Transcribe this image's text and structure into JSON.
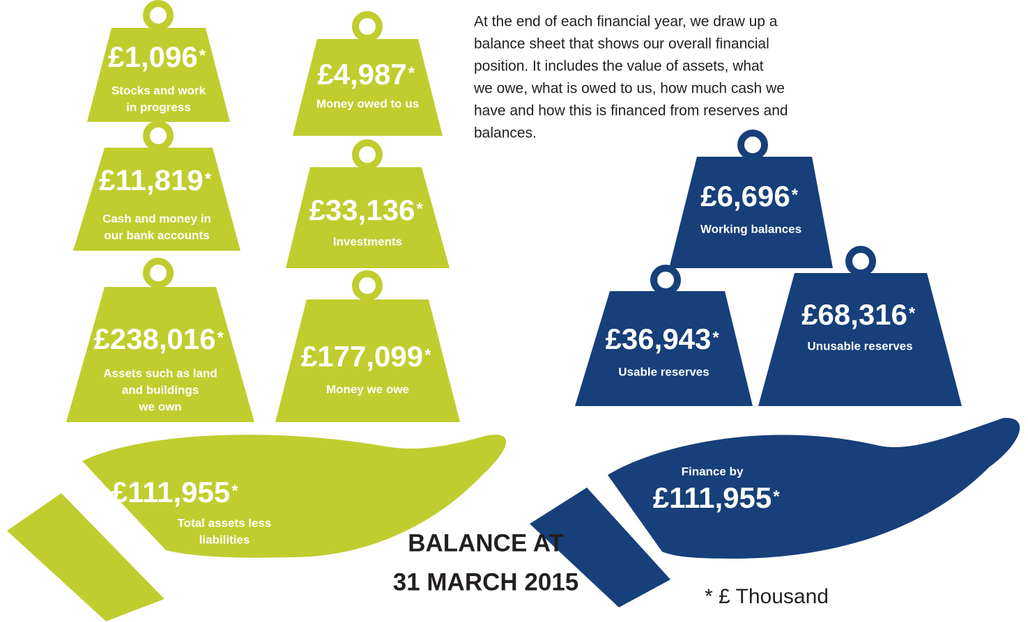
{
  "intro": [
    "At the end of each financial year, we draw up a",
    "balance sheet that shows our overall financial",
    "position. It includes the value of assets, what",
    "we owe, what is owed to us, how much cash we",
    "have and how this is financed from reserves and",
    "balances."
  ],
  "weights": [
    {
      "amount": "£1,096",
      "label": [
        "Stocks and work",
        "in progress"
      ]
    },
    {
      "amount": "£11,819",
      "label": [
        "Cash and money in",
        "our bank accounts"
      ]
    },
    {
      "amount": "£238,016",
      "label": [
        "Assets such as land",
        "and buildings",
        "we own"
      ]
    },
    {
      "amount": "£4,987",
      "label": [
        "Money owed to us"
      ]
    },
    {
      "amount": "£33,136",
      "label": [
        "Investments"
      ]
    },
    {
      "amount": "£177,099",
      "label": [
        "Money we owe"
      ]
    },
    {
      "amount": "£6,696",
      "label": [
        "Working balances"
      ]
    },
    {
      "amount": "£36,943",
      "label": [
        "Usable reserves"
      ]
    },
    {
      "amount": "£68,316",
      "label": [
        "Unusable reserves"
      ]
    }
  ],
  "hands": [
    {
      "amount": "£111,955",
      "label": [
        "Total assets less",
        "liabilities"
      ]
    },
    {
      "heading": "Finance by",
      "amount": "£111,955"
    }
  ],
  "asterisk": "*",
  "title": [
    "BALANCE AT",
    "31 MARCH 2015"
  ],
  "footnote": "* £ Thousand"
}
